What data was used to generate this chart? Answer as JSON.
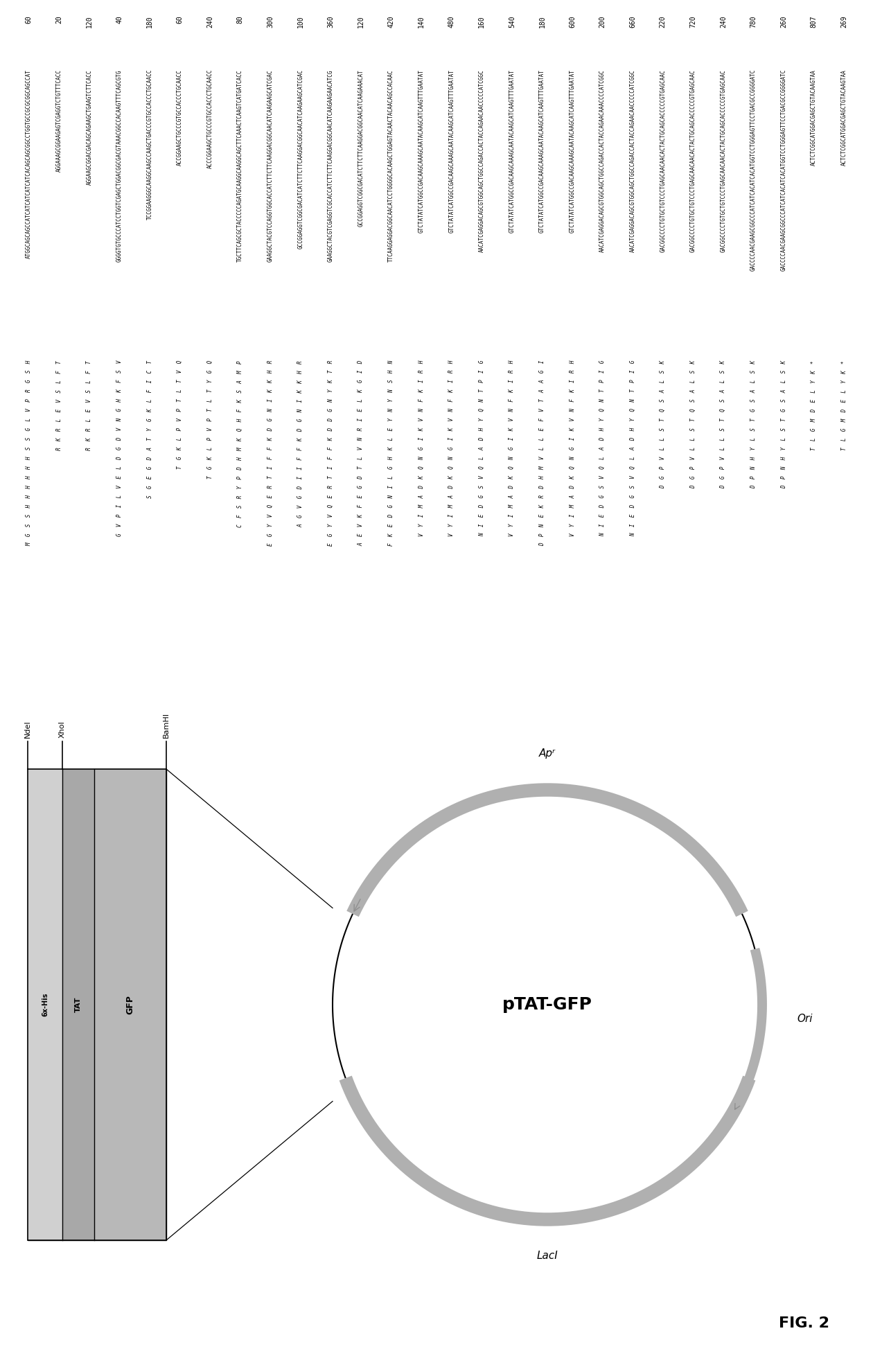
{
  "title": "FIG. 2",
  "plasmid_name": "pTAT-GFP",
  "top_numbers": [
    "60",
    "20",
    "120",
    "40",
    "180",
    "60",
    "240",
    "80",
    "300",
    "100",
    "360",
    "120",
    "420",
    "140",
    "480",
    "160",
    "540",
    "180",
    "600",
    "200",
    "660",
    "220",
    "720",
    "240",
    "780",
    "260",
    "807",
    "269"
  ],
  "dna_lines": [
    "ATGGCAGCAGCCATCATCATCATCATCACAGCAGCGGCCTGGTGCCGCGCGGCAGCCAT",
    "AGGAAAGCGGAAGAGTCGAGGTCTGTTTCACC",
    "AGGAAGCGGACGACAGCAGAAGCTGAAGTCTTCACC",
    "GGGGTGTGCCCATCCTGGTCGAGCTGGACGGCGACGTAAACGGCCACAAGTTTCAGCGTG",
    "TCCGGAAGGGCAAGGCAAGCCAAGCTGACCCGTGCCACCCTGCAACC",
    "ACCGGAAGCTGCCCGTGCCACCCTGCAACC",
    "ACCCGGAAGCTGCCCGTGCCACCCTGCAACC",
    "TGCTTCAGCGCTACCCCCAGATGCAAGGCAAGGCAGCTTCAAACTCAAGTCATGATCACC",
    "GAAGGCTACGTCCAGGTGGCACCATCTTCTTCAAGGACGGCAACATCAAGAAGCATCGAC",
    "GCCGGAGGTCGGCGACATCATCTTCTTCAAGGACGGCAACATCAAGAAGCATCGAC",
    "GAAGGCTACGTCGAGGTCGCACCATCTTCTTCAAGGACGGCAACATCAAGAAGAACATCG",
    "GCCGGAGGTCGGCGACATCTTCTTCAAGGACGGCAACATCAAGAAACAT",
    "TTCAAGGAGGACGGCAACATCCTGGGGCACAAGCTGGAGTACAACTACAACAGCCACAAC",
    "GTCTATATCATGGCCGACAAGCAAAGCAATACAAGCATCAAGTTTGAATAT",
    "GTCTATATCATGGCCGACAAGCAAAGCAATACAAGCATCAAGTTTGAATAT",
    "AACATCGAGGACAGCGTGGCAGCTGGCCAGACCACTACCAGAACAACCCCCATCGGC",
    "GTCTATATCATGGCCGACAAGCAAAGCAATACAAGCATCAAGTTTGAATAT",
    "GTCTATATCATGGCCGACAAGCAAAGCAATACAAGCATCAAGTTTGAATAT",
    "GTCTATATCATGGCCGACAAGCAAAGCAATACAAGCATCAAGTTTGAATAT",
    "AACATCGAGGACAGCGTGGCAGCTGGCCAGACCACTACCAGAACAAACCCCATCGGC",
    "AACATCGAGGACAGCGTGGCAGCTGGCCAGACCACTACCAGAACAACCCCCATCGGC",
    "GACGGCCCCTGTGCTGTCCCTGAGCAACAACACTACTGCAGCACCCCCGTGAGCAAC",
    "GACGGCCCCTGTGCTGTCCCTGAGCAACAACACTACTGCAGCACCCCCGTGAGCAAC",
    "GACGGCCCCTGTGCTGTCCCTGAGCAACAACACTACTGCAGCACCCCCGTGAGCAAC",
    "GACCCCAACGAAGCGGCCCATCATCACATCACATGGTCCTGGGAGTTCCTGACGCCGGGGATC",
    "GACCCCAACGAAGCGGCCCATCATCACATCACATGGTCCTGGGAGTTCCTGACGCCGGGGATC",
    "ACTCTCGGCATGGACGAGCTGTACAAGTAA",
    "ACTCTCGGCATGGACGAGCTGTACAAGTAA"
  ],
  "aa_lines": [
    "M  G  S  S  H  H  H  H  H  H  S  S  G  L  V  P  R  G  S  H",
    "R  K  R  L  E  V  S  L  F  T",
    "R  K  R  L  E  V  S  L  F  T",
    "G  V  P  I  L  V  E  L  D  G  D  V  N  G  H  K  F  S  V",
    "S  G  E  G  D  A  T  Y  G  K  L  F  I  C  T",
    "T  G  K  L  P  V  P  T  L  T  V  Q",
    "T  G  K  L  P  V  P  T  L  T  Y  G  Q",
    "C  F  S  R  Y  P  D  H  M  K  Q  H  F  K  S  A  M  P",
    "E  G  Y  V  Q  E  R  T  I  F  F  K  D  G  N  I  K  K  H  R",
    "A  G  V  G  D  I  I  F  F  K  D  G  N  I  K  K  H  R",
    "E  G  Y  V  Q  E  R  T  I  F  F  K  D  D  G  N  Y  K  T  R",
    "A  E  V  K  F  E  G  D  T  L  V  N  R  I  E  L  K  G  I  D",
    "F  K  E  D  G  N  I  L  G  H  K  L  E  Y  N  Y  N  S  H  N",
    "V  Y  I  M  A  D  K  Q  N  G  I  K  V  N  F  K  I  R  H",
    "V  Y  I  M  A  D  K  Q  N  G  I  K  V  N  F  K  I  R  H",
    "N  I  E  D  G  S  V  Q  L  A  D  H  Y  Q  N  T  P  I  G",
    "V  Y  I  M  A  D  K  Q  N  G  I  K  V  N  F  K  I  R  H",
    "D  P  N  E  K  R  D  H  M  V  L  L  E  F  V  T  A  A  G  I",
    "V  Y  I  M  A  D  K  Q  N  G  I  K  V  N  F  K  I  R  H",
    "N  I  E  D  G  S  V  Q  L  A  D  H  Y  Q  N  T  P  I  G",
    "N  I  E  D  G  S  V  Q  L  A  D  H  Y  Q  N  T  P  I  G",
    "D  G  P  V  L  L  S  T  Q  S  A  L  S  K",
    "D  G  P  V  L  L  S  T  Q  S  A  L  S  K",
    "D  G  P  V  L  L  S  T  Q  S  A  L  S  K",
    "D  P  N  H  Y  L  S  T  G  S  A  L  S  K",
    "D  P  N  H  Y  L  S  T  G  S  A  L  S  K",
    "T  L  G  M  D  E  L  Y  K  *",
    "T  L  G  M  D  E  L  Y  K  *"
  ],
  "background_color": "#ffffff"
}
